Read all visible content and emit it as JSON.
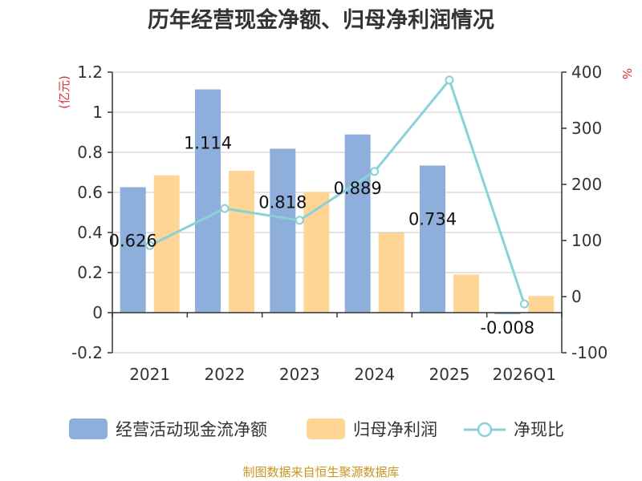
{
  "chart_data": {
    "type": "bar",
    "title": "历年经营现金净额、归母净利润情况",
    "categories": [
      "2021",
      "2022",
      "2023",
      "2024",
      "2025",
      "2026Q1"
    ],
    "y_left_unit": "(亿元)",
    "y_right_unit": "%",
    "y_left_ticks": [
      "1.2",
      "1",
      "0.8",
      "0.6",
      "0.4",
      "0.2",
      "0",
      "-0.2"
    ],
    "y_right_ticks": [
      "400",
      "300",
      "200",
      "100",
      "0",
      "-100"
    ],
    "ylim_left": [
      -0.2,
      1.2
    ],
    "ylim_right": [
      -100,
      400
    ],
    "series": [
      {
        "name": "经营活动现金流净额",
        "kind": "bar",
        "axis": "left",
        "color": "#8eaedb",
        "values": [
          0.626,
          1.114,
          0.818,
          0.889,
          0.734,
          -0.008
        ],
        "labels": [
          "0.626",
          "1.114",
          "0.818",
          "0.889",
          "0.734",
          "-0.008"
        ]
      },
      {
        "name": "归母净利润",
        "kind": "bar",
        "axis": "left",
        "color": "#ffd596",
        "values": [
          0.685,
          0.708,
          0.603,
          0.398,
          0.19,
          0.083
        ]
      },
      {
        "name": "净现比",
        "kind": "line",
        "axis": "right",
        "color": "#88d1d8",
        "values": [
          91,
          157,
          136,
          223,
          386,
          -13
        ]
      }
    ],
    "grid": true,
    "legend_position": "bottom"
  },
  "source": "制图数据来自恒生聚源数据库"
}
